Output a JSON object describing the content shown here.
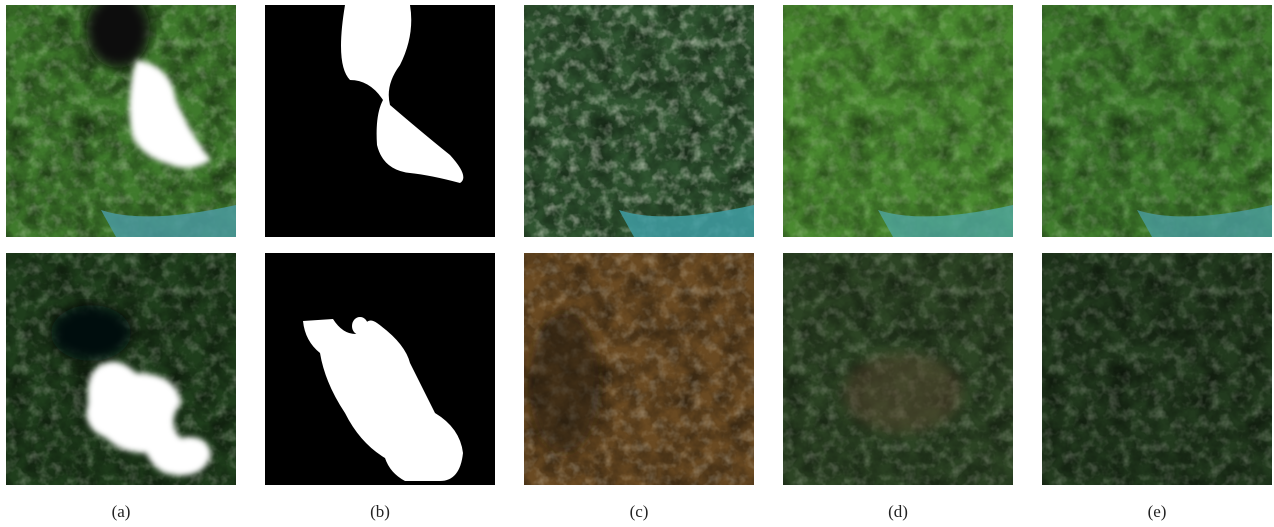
{
  "captions": [
    "(a)",
    "(b)",
    "(c)",
    "(d)",
    "(e)"
  ]
}
